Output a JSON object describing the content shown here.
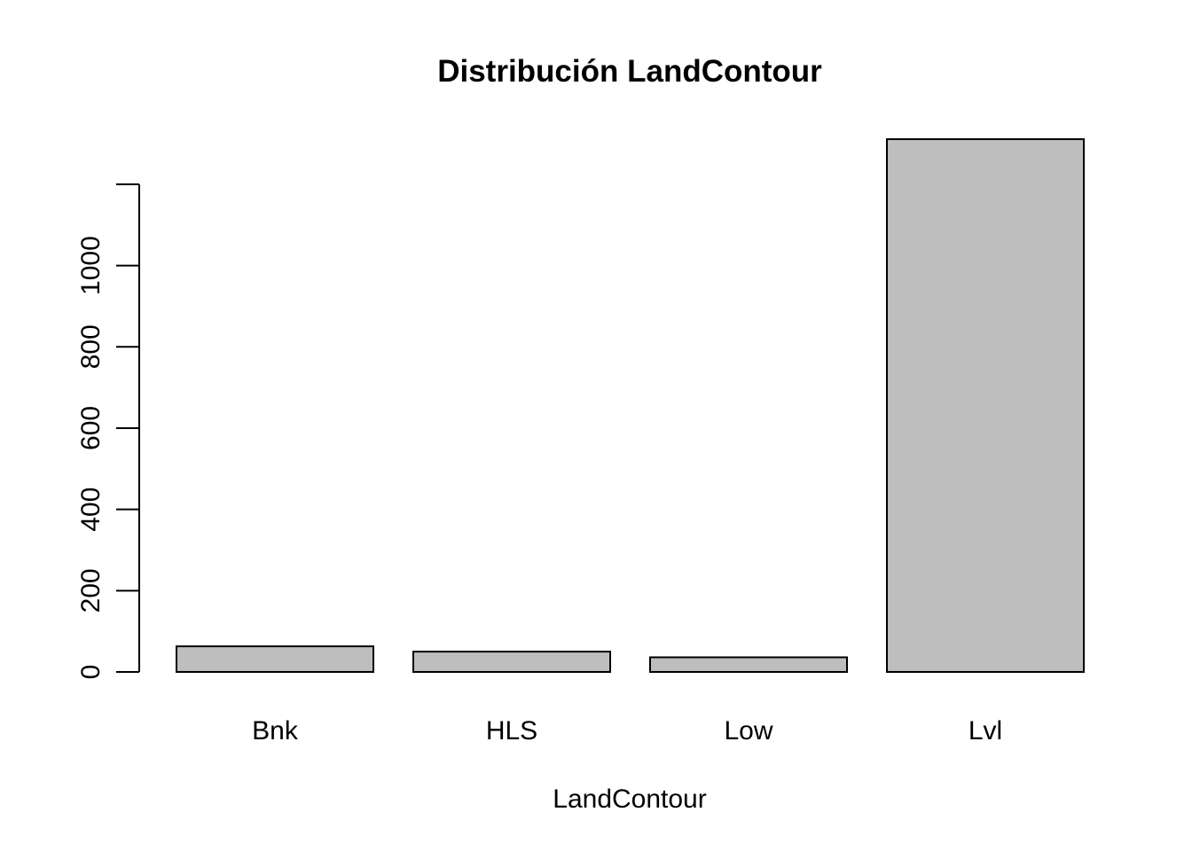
{
  "chart_data": {
    "type": "bar",
    "title": "Distribución LandContour",
    "xlabel": "LandContour",
    "ylabel": "",
    "categories": [
      "Bnk",
      "HLS",
      "Low",
      "Lvl"
    ],
    "values": [
      63,
      50,
      36,
      1311
    ],
    "ylim": [
      0,
      1311
    ],
    "yticks": [
      0,
      200,
      400,
      600,
      800,
      1000,
      1200
    ],
    "ytick_labels": [
      "0",
      "200",
      "400",
      "600",
      "800",
      "1000",
      ""
    ],
    "grid": false,
    "bar_color": "#bebebe",
    "border_color": "#000000"
  }
}
